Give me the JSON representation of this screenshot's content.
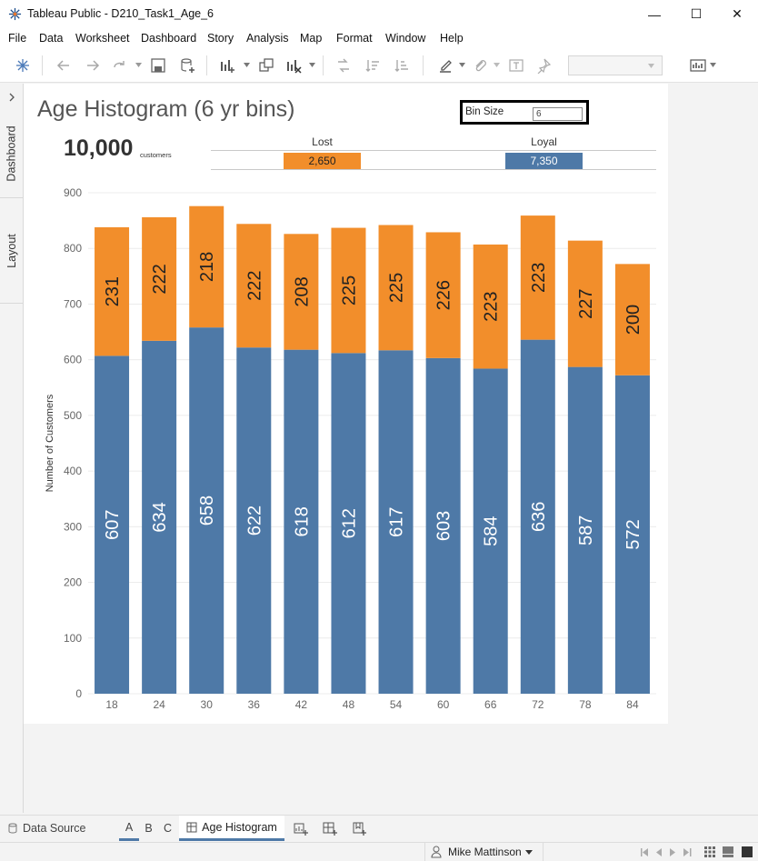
{
  "window": {
    "title": "Tableau Public - D210_Task1_Age_6",
    "minimize_glyph": "—",
    "maximize_glyph": "☐",
    "close_glyph": "✕"
  },
  "menu": [
    "File",
    "Data",
    "Worksheet",
    "Dashboard",
    "Story",
    "Analysis",
    "Map",
    "Format",
    "Window",
    "Help"
  ],
  "side_panel": {
    "tabs": [
      "Dashboard",
      "Layout"
    ]
  },
  "dashboard": {
    "title": "Age Histogram (6 yr bins)",
    "bin_size": {
      "label": "Bin Size",
      "value": "6"
    },
    "kpi": {
      "value": "10,000",
      "label": "customers"
    },
    "legend": {
      "lost": {
        "label": "Lost",
        "total": "2,650",
        "color": "#f28e2b"
      },
      "loyal": {
        "label": "Loyal",
        "total": "7,350",
        "color": "#4e79a7"
      }
    }
  },
  "chart_data": {
    "type": "bar",
    "stacked": true,
    "title": "",
    "xlabel": "",
    "ylabel": "Number of Customers",
    "ylim": [
      0,
      900
    ],
    "yticks": [
      0,
      100,
      200,
      300,
      400,
      500,
      600,
      700,
      800,
      900
    ],
    "categories": [
      "18",
      "24",
      "30",
      "36",
      "42",
      "48",
      "54",
      "60",
      "66",
      "72",
      "78",
      "84"
    ],
    "series": [
      {
        "name": "Loyal",
        "color": "#4e79a7",
        "values": [
          607,
          634,
          658,
          622,
          618,
          612,
          617,
          603,
          584,
          636,
          587,
          572
        ]
      },
      {
        "name": "Lost",
        "color": "#f28e2b",
        "values": [
          231,
          222,
          218,
          222,
          208,
          225,
          225,
          226,
          223,
          223,
          227,
          200
        ]
      }
    ],
    "grid": true
  },
  "sheet_tabs": {
    "data_source": "Data Source",
    "sheets": [
      "A",
      "B",
      "C"
    ],
    "active": "Age Histogram"
  },
  "status": {
    "user": "Mike Mattinson"
  }
}
